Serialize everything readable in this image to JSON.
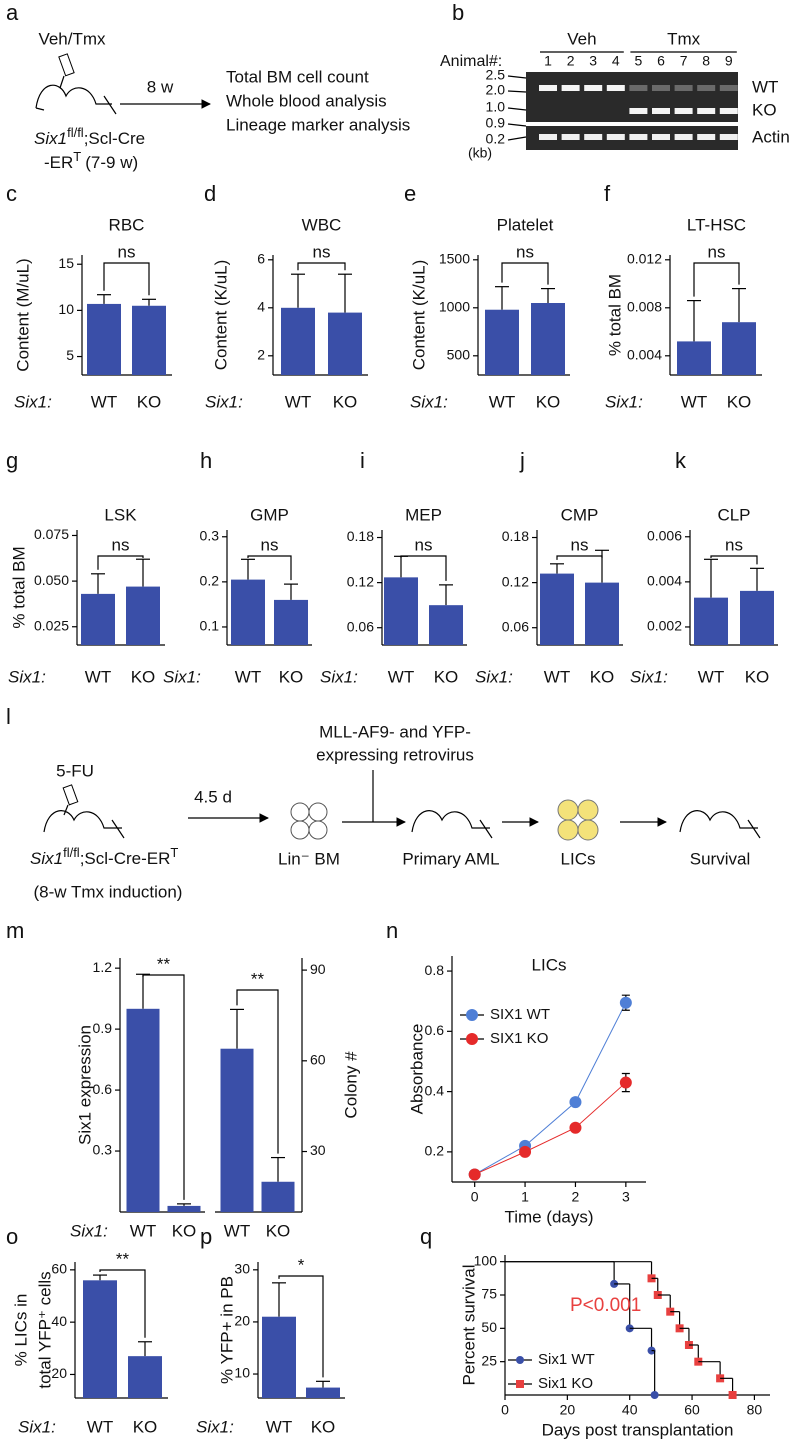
{
  "diagrams": {
    "a": {
      "panel": "a",
      "treatment": "Veh/Tmx",
      "duration": "8 w",
      "readouts": [
        "Total BM cell count",
        "Whole blood analysis",
        "Lineage marker analysis"
      ],
      "mouse": [
        "Six1",
        "fl/fl",
        ";Scl-Cre",
        "-ER",
        "T",
        "(7-9 w)"
      ]
    },
    "b": {
      "panel": "b",
      "lane_header": "Animal#:",
      "groups": [
        {
          "label": "Veh",
          "lanes": [
            "1",
            "2",
            "3",
            "4"
          ]
        },
        {
          "label": "Tmx",
          "lanes": [
            "5",
            "6",
            "7",
            "8",
            "9"
          ]
        }
      ],
      "markers": [
        "2.5",
        "2.0",
        "1.0",
        "0.9",
        "0.2"
      ],
      "unit": "(kb)",
      "bands": [
        "WT",
        "KO",
        "Actin"
      ]
    },
    "l": {
      "panel": "l",
      "treatment": "5-FU",
      "duration": "4.5 d",
      "vector": [
        "MLL-AF9- and YFP-",
        "expressing retrovirus"
      ],
      "mouse": [
        "Six1",
        "fl/fl",
        ";Scl-Cre-ER",
        "T",
        "(8-w Tmx induction)"
      ],
      "steps": [
        "Lin⁻ BM",
        "Primary AML",
        "LICs",
        "Survival"
      ]
    }
  },
  "chart_data": [
    {
      "type": "bar",
      "panel": "c",
      "title": "RBC",
      "ylabel": "Content (M/uL)",
      "group_label": "Six1:",
      "categories": [
        "WT",
        "KO"
      ],
      "values": [
        10.7,
        10.5
      ],
      "errors": [
        1.0,
        0.7
      ],
      "color": "#3a4fa8",
      "ylim": [
        3,
        16
      ],
      "yticks": [
        5,
        10,
        15
      ],
      "significance": "ns"
    },
    {
      "type": "bar",
      "panel": "d",
      "title": "WBC",
      "ylabel": "Content (K/uL)",
      "group_label": "Six1:",
      "categories": [
        "WT",
        "KO"
      ],
      "values": [
        4,
        3.8
      ],
      "errors": [
        1.4,
        1.6
      ],
      "color": "#3a4fa8",
      "ylim": [
        1.2,
        6.2
      ],
      "yticks": [
        2,
        4,
        6
      ],
      "significance": "ns"
    },
    {
      "type": "bar",
      "panel": "e",
      "title": "Platelet",
      "ylabel": "Content (K/uL)",
      "group_label": "Six1:",
      "categories": [
        "WT",
        "KO"
      ],
      "values": [
        980,
        1050
      ],
      "errors": [
        240,
        150
      ],
      "color": "#3a4fa8",
      "ylim": [
        300,
        1550
      ],
      "yticks": [
        500,
        1000,
        1500
      ],
      "significance": "ns"
    },
    {
      "type": "bar",
      "panel": "f",
      "title": "LT-HSC",
      "ylabel": "% total BM",
      "group_label": "Six1:",
      "categories": [
        "WT",
        "KO"
      ],
      "values": [
        0.0052,
        0.0068
      ],
      "errors": [
        0.0034,
        0.0028
      ],
      "color": "#3a4fa8",
      "ylim": [
        0.0024,
        0.0124
      ],
      "yticks": [
        0.004,
        0.008,
        0.012
      ],
      "significance": "ns"
    },
    {
      "type": "bar",
      "panel": "g",
      "title": "LSK",
      "ylabel": "% total BM",
      "group_label": "Six1:",
      "categories": [
        "WT",
        "KO"
      ],
      "values": [
        0.043,
        0.047
      ],
      "errors": [
        0.011,
        0.015
      ],
      "color": "#3a4fa8",
      "ylim": [
        0.015,
        0.078
      ],
      "yticks": [
        0.025,
        {
          "value": 0.05,
          "label": "0.050"
        },
        0.075
      ],
      "significance": "ns"
    },
    {
      "type": "bar",
      "panel": "h",
      "title": "GMP",
      "group_label": "Six1:",
      "categories": [
        "WT",
        "KO"
      ],
      "values": [
        0.205,
        0.16
      ],
      "errors": [
        0.045,
        0.035
      ],
      "color": "#3a4fa8",
      "ylim": [
        0.06,
        0.315
      ],
      "yticks": [
        0.1,
        0.2,
        0.3
      ],
      "significance": "ns"
    },
    {
      "type": "bar",
      "panel": "i",
      "title": "MEP",
      "group_label": "Six1:",
      "categories": [
        "WT",
        "KO"
      ],
      "values": [
        0.127,
        0.09
      ],
      "errors": [
        0.028,
        0.027
      ],
      "color": "#3a4fa8",
      "ylim": [
        0.037,
        0.19
      ],
      "yticks": [
        0.06,
        0.12,
        0.18
      ],
      "significance": "ns"
    },
    {
      "type": "bar",
      "panel": "j",
      "title": "CMP",
      "group_label": "Six1:",
      "categories": [
        "WT",
        "KO"
      ],
      "values": [
        0.132,
        0.12
      ],
      "errors": [
        0.013,
        0.043
      ],
      "color": "#3a4fa8",
      "ylim": [
        0.037,
        0.19
      ],
      "yticks": [
        0.06,
        0.12,
        0.18
      ],
      "significance": "ns"
    },
    {
      "type": "bar",
      "panel": "k",
      "title": "CLP",
      "group_label": "Six1:",
      "categories": [
        "WT",
        "KO"
      ],
      "values": [
        0.0033,
        0.0036
      ],
      "errors": [
        0.0017,
        0.001
      ],
      "color": "#3a4fa8",
      "ylim": [
        0.0012,
        0.0063
      ],
      "yticks": [
        0.002,
        0.004,
        0.006
      ],
      "significance": "ns"
    },
    {
      "type": "bar",
      "panel": "m",
      "ylabel": "Six1 expression",
      "group_label": "Six1:",
      "categories": [
        "WT",
        "KO"
      ],
      "values": [
        1,
        0.03
      ],
      "errors": [
        0.17,
        0.01
      ],
      "color": "#3a4fa8",
      "ylim": [
        0,
        1.25
      ],
      "yticks": [
        0.3,
        0.6,
        0.9,
        1.2
      ],
      "significance": "**"
    },
    {
      "type": "bar",
      "ylabel": "Colony #",
      "axis_side": "right",
      "categories": [
        "WT",
        "KO"
      ],
      "values": [
        64,
        20
      ],
      "errors": [
        13,
        8
      ],
      "color": "#3a4fa8",
      "ylim": [
        10,
        94
      ],
      "yticks": [
        30,
        60,
        90
      ],
      "significance": "**"
    },
    {
      "type": "line",
      "panel": "n",
      "title": "LICs",
      "xlabel": "Time (days)",
      "ylabel": "Absorbance",
      "x": [
        0,
        1,
        2,
        3
      ],
      "xlim": [
        -0.45,
        3.4
      ],
      "xticks": [
        0,
        1,
        2,
        3
      ],
      "ylim": [
        0.1,
        0.85
      ],
      "yticks": [
        0.2,
        0.4,
        0.6,
        0.8
      ],
      "legend_position": "upper left",
      "series": [
        {
          "name": "SIX1 WT",
          "color": "#4f7fd6",
          "values": [
            0.125,
            0.22,
            0.365,
            0.695
          ],
          "errors": [
            0.01,
            0.01,
            0.01,
            0.025
          ]
        },
        {
          "name": "SIX1 KO",
          "color": "#e52a2a",
          "values": [
            0.125,
            0.2,
            0.28,
            0.43
          ],
          "errors": [
            0.01,
            0.01,
            0.01,
            0.03
          ]
        }
      ]
    },
    {
      "type": "bar",
      "panel": "o",
      "ylabel": [
        "% LICs in",
        "total YFP⁺ cells"
      ],
      "group_label": "Six1:",
      "categories": [
        "WT",
        "KO"
      ],
      "values": [
        56,
        27
      ],
      "errors": [
        2,
        5.5
      ],
      "color": "#3a4fa8",
      "ylim": [
        11,
        63
      ],
      "yticks": [
        20,
        40,
        60
      ],
      "significance": "**"
    },
    {
      "type": "bar",
      "panel": "p",
      "ylabel": "% YFP+ in PB",
      "group_label": "Six1:",
      "categories": [
        "WT",
        "KO"
      ],
      "values": [
        21,
        7.4
      ],
      "errors": [
        6.5,
        1.2
      ],
      "color": "#3a4fa8",
      "ylim": [
        5.4,
        31.5
      ],
      "yticks": [
        10,
        20,
        30
      ],
      "significance": "*"
    },
    {
      "type": "step",
      "panel": "q",
      "xlabel": "Days post transplantation",
      "ylabel": "Percent survival",
      "xlim": [
        0,
        85
      ],
      "xticks": [
        0,
        20,
        40,
        60,
        80
      ],
      "ylim": [
        0,
        105
      ],
      "yticks": [
        25,
        50,
        75,
        100
      ],
      "legend_position": "lower left",
      "annotation": {
        "text": "P<0.001",
        "color": "#e8403f"
      },
      "series": [
        {
          "name": "Six1 WT",
          "color": "#3a4fa8",
          "marker": "circle",
          "x": [
            0,
            35,
            40,
            47,
            48
          ],
          "values": [
            100,
            83.3,
            50,
            33.3,
            0
          ]
        },
        {
          "name": "Six1 KO",
          "color": "#e8403f",
          "marker": "square",
          "x": [
            0,
            47,
            49,
            53,
            56,
            59,
            62,
            69,
            73
          ],
          "values": [
            100,
            87.5,
            75,
            62.5,
            50,
            37.5,
            25,
            12.5,
            0
          ]
        }
      ]
    }
  ]
}
